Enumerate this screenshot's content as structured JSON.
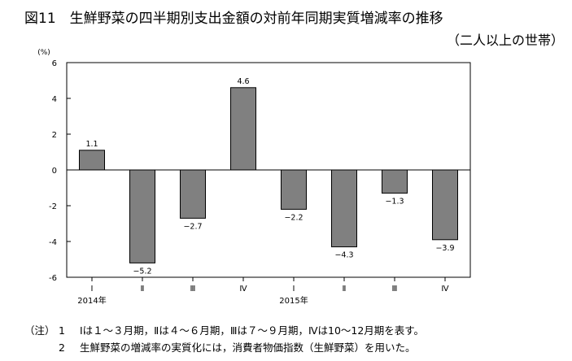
{
  "title": "図11　生鮮野菜の四半期別支出金額の対前年同期実質増減率の推移",
  "subtitle": "（二人以上の世帯）",
  "chart_data": {
    "type": "bar",
    "unit": "(%)",
    "ylim": [
      -6,
      6
    ],
    "yticks": [
      "6",
      "4",
      "2",
      "0",
      "-2",
      "-4",
      "-6"
    ],
    "categories": [
      "Ⅰ",
      "Ⅱ",
      "Ⅲ",
      "Ⅳ",
      "Ⅰ",
      "Ⅱ",
      "Ⅲ",
      "Ⅳ"
    ],
    "values": [
      1.1,
      -5.2,
      -2.7,
      4.6,
      -2.2,
      -4.3,
      -1.3,
      -3.9
    ],
    "value_labels": [
      "1.1",
      "−5.2",
      "−2.7",
      "4.6",
      "−2.2",
      "−4.3",
      "−1.3",
      "−3.9"
    ],
    "year_labels": [
      "2014年",
      "2015年"
    ],
    "bar_color": "#808080",
    "grid": false
  },
  "notes": {
    "prefix": "（注）",
    "items": [
      {
        "num": "1",
        "text": "Ⅰは１～３月期，Ⅱは４～６月期，Ⅲは７～９月期，Ⅳは10～12月期を表す。"
      },
      {
        "num": "2",
        "text": "生鮮野菜の増減率の実質化には，消費者物価指数（生鮮野菜）を用いた。"
      }
    ]
  }
}
